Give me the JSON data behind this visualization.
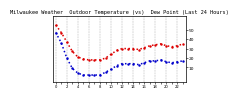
{
  "title": "Milwaukee Weather  Outdoor Temperature (vs)  Dew Point (Last 24 Hours)",
  "temp_values": [
    55,
    47,
    37,
    27,
    21,
    19,
    18,
    18,
    18,
    20,
    24,
    28,
    30,
    30,
    30,
    29,
    31,
    33,
    34,
    35,
    33,
    32,
    33,
    35
  ],
  "dew_values": [
    47,
    36,
    20,
    9,
    4,
    2,
    2,
    2,
    2,
    5,
    8,
    12,
    14,
    14,
    14,
    13,
    15,
    17,
    17,
    18,
    16,
    15,
    16,
    17
  ],
  "temp_color": "#dd0000",
  "dew_color": "#0000cc",
  "grid_color": "#999999",
  "bg_color": "#ffffff",
  "ylim": [
    -5,
    65
  ],
  "ytick_values": [
    10,
    20,
    30,
    40,
    50
  ],
  "ytick_labels": [
    "10",
    "20",
    "30",
    "40",
    "50"
  ],
  "title_fontsize": 3.8,
  "tick_fontsize": 3.2,
  "n_xticks": 24
}
